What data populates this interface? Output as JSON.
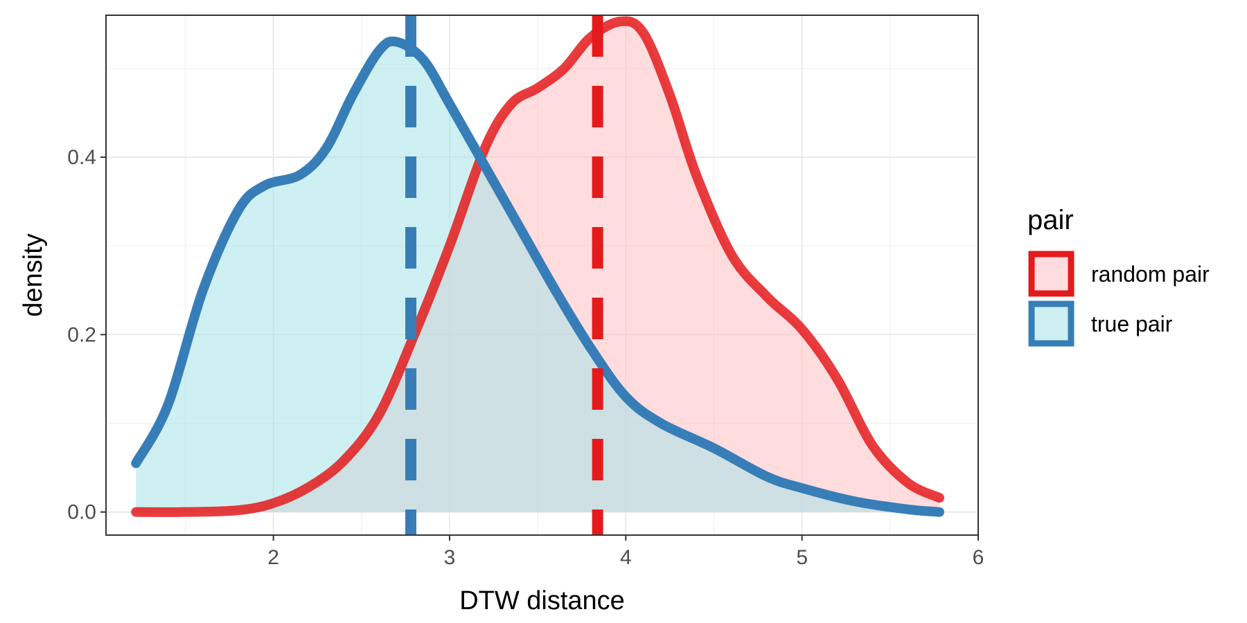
{
  "chart_data": {
    "type": "area",
    "xlabel": "DTW distance",
    "ylabel": "density",
    "xlim": [
      1.05,
      6.0
    ],
    "ylim": [
      -0.026,
      0.56
    ],
    "x_ticks": [
      2,
      3,
      4,
      5,
      6
    ],
    "x_tick_labels": [
      "2",
      "3",
      "4",
      "5",
      "6"
    ],
    "y_ticks": [
      0.0,
      0.2,
      0.4
    ],
    "y_tick_labels": [
      "0.0",
      "0.2",
      "0.4"
    ],
    "grid": true,
    "legend_position": "right",
    "legend_title": "pair",
    "series": [
      {
        "name": "random pair",
        "line_color": "#e41a1c",
        "fill_color": "#ffc0c3",
        "mean_line_x": 3.84,
        "points": [
          [
            1.22,
            0.0
          ],
          [
            1.5,
            0.0
          ],
          [
            1.8,
            0.002
          ],
          [
            2.0,
            0.01
          ],
          [
            2.2,
            0.028
          ],
          [
            2.4,
            0.058
          ],
          [
            2.6,
            0.11
          ],
          [
            2.8,
            0.2
          ],
          [
            3.0,
            0.3
          ],
          [
            3.2,
            0.41
          ],
          [
            3.35,
            0.46
          ],
          [
            3.5,
            0.478
          ],
          [
            3.65,
            0.5
          ],
          [
            3.8,
            0.535
          ],
          [
            3.97,
            0.553
          ],
          [
            4.1,
            0.54
          ],
          [
            4.25,
            0.47
          ],
          [
            4.4,
            0.38
          ],
          [
            4.6,
            0.29
          ],
          [
            4.8,
            0.243
          ],
          [
            5.0,
            0.206
          ],
          [
            5.2,
            0.15
          ],
          [
            5.4,
            0.075
          ],
          [
            5.6,
            0.033
          ],
          [
            5.78,
            0.016
          ]
        ]
      },
      {
        "name": "true pair",
        "line_color": "#377eb8",
        "fill_color": "#a6e4e8",
        "mean_line_x": 2.78,
        "points": [
          [
            1.22,
            0.055
          ],
          [
            1.4,
            0.12
          ],
          [
            1.6,
            0.25
          ],
          [
            1.8,
            0.34
          ],
          [
            1.95,
            0.368
          ],
          [
            2.15,
            0.38
          ],
          [
            2.3,
            0.41
          ],
          [
            2.45,
            0.47
          ],
          [
            2.6,
            0.52
          ],
          [
            2.7,
            0.53
          ],
          [
            2.85,
            0.51
          ],
          [
            3.0,
            0.46
          ],
          [
            3.2,
            0.39
          ],
          [
            3.4,
            0.32
          ],
          [
            3.6,
            0.25
          ],
          [
            3.8,
            0.185
          ],
          [
            4.0,
            0.13
          ],
          [
            4.2,
            0.1
          ],
          [
            4.5,
            0.072
          ],
          [
            4.8,
            0.04
          ],
          [
            5.0,
            0.027
          ],
          [
            5.3,
            0.012
          ],
          [
            5.6,
            0.003
          ],
          [
            5.78,
            0.0
          ]
        ]
      }
    ]
  }
}
